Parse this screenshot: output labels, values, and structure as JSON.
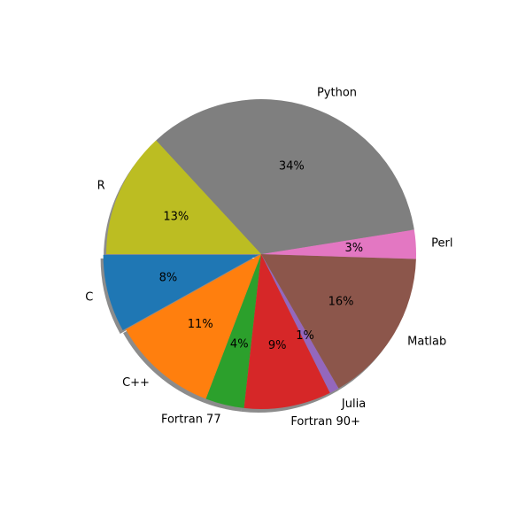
{
  "chart_data": {
    "type": "pie",
    "title": "",
    "slices": [
      {
        "label": "C",
        "value": 8,
        "pct_label": "8%",
        "color": "#1f77b4"
      },
      {
        "label": "C++",
        "value": 11,
        "pct_label": "11%",
        "color": "#ff7f0e"
      },
      {
        "label": "Fortran 77",
        "value": 4,
        "pct_label": "4%",
        "color": "#2ca02c"
      },
      {
        "label": "Fortran 90+",
        "value": 9,
        "pct_label": "9%",
        "color": "#d62728"
      },
      {
        "label": "Julia",
        "value": 1,
        "pct_label": "1%",
        "color": "#9467bd"
      },
      {
        "label": "Matlab",
        "value": 16,
        "pct_label": "16%",
        "color": "#8c564b"
      },
      {
        "label": "Perl",
        "value": 3,
        "pct_label": "3%",
        "color": "#e377c2"
      },
      {
        "label": "Python",
        "value": 34,
        "pct_label": "34%",
        "color": "#7f7f7f"
      },
      {
        "label": "R",
        "value": 13,
        "pct_label": "13%",
        "color": "#bcbd22"
      }
    ],
    "legend": "none",
    "shadow": true,
    "exploded": "C"
  }
}
